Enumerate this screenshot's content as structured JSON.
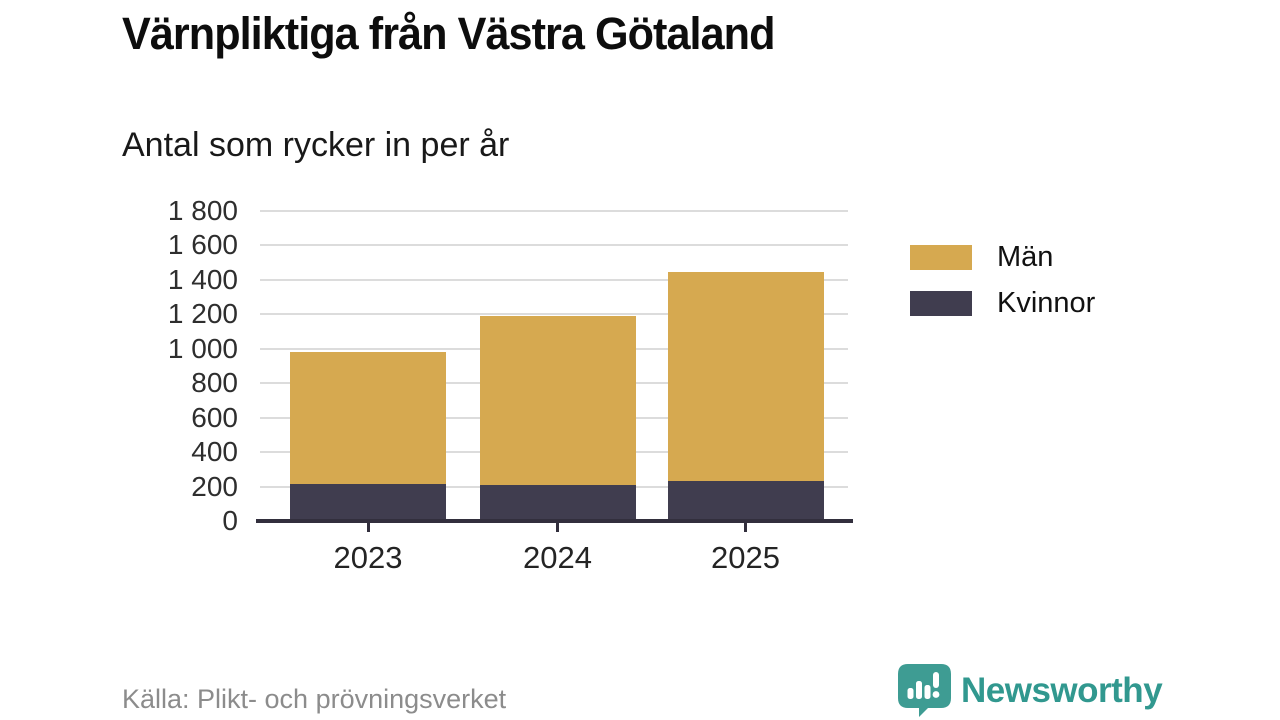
{
  "header": {
    "title": "Värnpliktiga från Västra Götaland",
    "subtitle": "Antal som rycker in per år"
  },
  "chart_data": {
    "type": "bar",
    "stacked": true,
    "title": "Värnpliktiga från Västra Götaland",
    "subtitle": "Antal som rycker in per år",
    "categories": [
      "2023",
      "2024",
      "2025"
    ],
    "series": [
      {
        "name": "Män",
        "color": "#d6a950",
        "values": [
          765,
          980,
          1210
        ]
      },
      {
        "name": "Kvinnor",
        "color": "#403d4f",
        "values": [
          215,
          210,
          235
        ]
      }
    ],
    "stack_bottom_series": "Kvinnor",
    "totals": [
      980,
      1190,
      1445
    ],
    "xlabel": "",
    "ylabel": "",
    "ylim": [
      0,
      1800
    ],
    "ytick_step": 200,
    "ytick_labels": [
      "0",
      "200",
      "400",
      "600",
      "800",
      "1 000",
      "1 200",
      "1 400",
      "1 600",
      "1 800"
    ],
    "grid": true,
    "legend_position": "right"
  },
  "footer": {
    "source": "Källa: Plikt- och prövningsverket",
    "brand": "Newsworthy"
  },
  "colors": {
    "men_gold": "#d6a950",
    "women_dark": "#403d4f",
    "gridline": "#dcdcdc",
    "axis": "#322f3d",
    "brand_teal_icon": "#3e9c93",
    "brand_teal_text": "#31988f",
    "source_gray": "#8c8c8c"
  }
}
